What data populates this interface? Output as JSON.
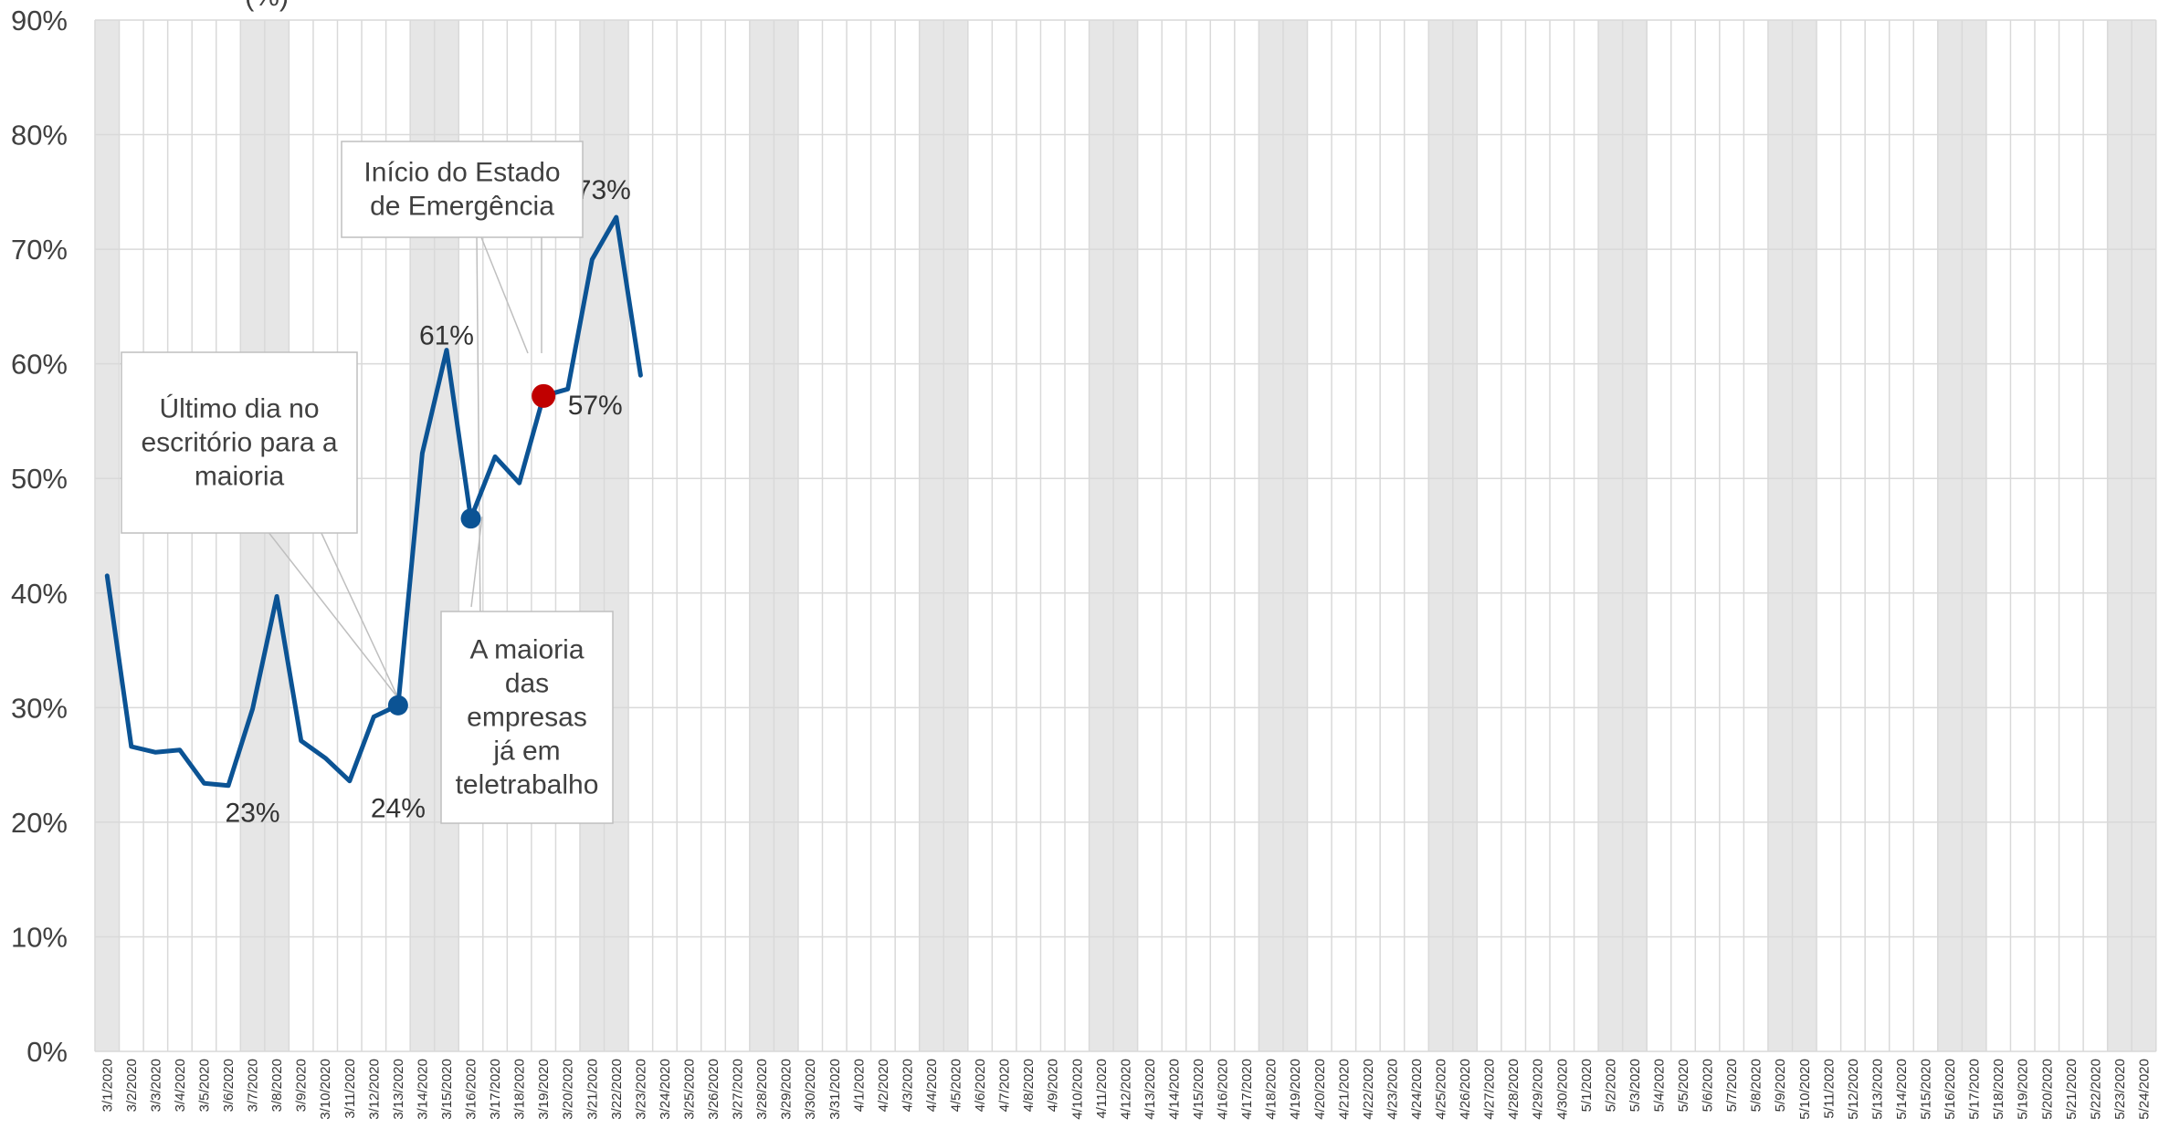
{
  "chart_data": {
    "type": "line",
    "title": "(%)",
    "ylim": [
      0,
      0.9
    ],
    "y_ticks": [
      "0%",
      "10%",
      "20%",
      "30%",
      "40%",
      "50%",
      "60%",
      "70%",
      "80%",
      "90%"
    ],
    "grid": true,
    "categories": [
      "3/1/2020",
      "3/2/2020",
      "3/3/2020",
      "3/4/2020",
      "3/5/2020",
      "3/6/2020",
      "3/7/2020",
      "3/8/2020",
      "3/9/2020",
      "3/10/2020",
      "3/11/2020",
      "3/12/2020",
      "3/13/2020",
      "3/14/2020",
      "3/15/2020",
      "3/16/2020",
      "3/17/2020",
      "3/18/2020",
      "3/19/2020",
      "3/20/2020",
      "3/21/2020",
      "3/22/2020",
      "3/23/2020",
      "3/24/2020",
      "3/25/2020",
      "3/26/2020",
      "3/27/2020",
      "3/28/2020",
      "3/29/2020",
      "3/30/2020",
      "3/31/2020",
      "4/1/2020",
      "4/2/2020",
      "4/3/2020",
      "4/4/2020",
      "4/5/2020",
      "4/6/2020",
      "4/7/2020",
      "4/8/2020",
      "4/9/2020",
      "4/10/2020",
      "4/11/2020",
      "4/12/2020",
      "4/13/2020",
      "4/14/2020",
      "4/15/2020",
      "4/16/2020",
      "4/17/2020",
      "4/18/2020",
      "4/19/2020",
      "4/20/2020",
      "4/21/2020",
      "4/22/2020",
      "4/23/2020",
      "4/24/2020",
      "4/25/2020",
      "4/26/2020",
      "4/27/2020",
      "4/28/2020",
      "4/29/2020",
      "4/30/2020",
      "5/1/2020",
      "5/2/2020",
      "5/3/2020",
      "5/4/2020",
      "5/5/2020",
      "5/6/2020",
      "5/7/2020",
      "5/8/2020",
      "5/9/2020",
      "5/10/2020",
      "5/11/2020",
      "5/12/2020",
      "5/13/2020",
      "5/14/2020",
      "5/15/2020",
      "5/16/2020",
      "5/17/2020",
      "5/18/2020",
      "5/19/2020",
      "5/20/2020",
      "5/21/2020",
      "5/22/2020",
      "5/23/2020",
      "5/24/2020"
    ],
    "weekend_bands": [
      [
        "3/1/2020",
        "3/1/2020"
      ],
      [
        "3/7/2020",
        "3/8/2020"
      ],
      [
        "3/14/2020",
        "3/15/2020"
      ],
      [
        "3/21/2020",
        "3/22/2020"
      ],
      [
        "3/28/2020",
        "3/29/2020"
      ],
      [
        "4/4/2020",
        "4/5/2020"
      ],
      [
        "4/11/2020",
        "4/12/2020"
      ],
      [
        "4/18/2020",
        "4/19/2020"
      ],
      [
        "4/25/2020",
        "4/26/2020"
      ],
      [
        "5/2/2020",
        "5/3/2020"
      ],
      [
        "5/9/2020",
        "5/10/2020"
      ],
      [
        "5/16/2020",
        "5/17/2020"
      ],
      [
        "5/23/2020",
        "5/24/2020"
      ]
    ],
    "series": [
      {
        "color": "#0B5394",
        "x": [
          "3/1/2020",
          "3/2/2020",
          "3/3/2020",
          "3/4/2020",
          "3/5/2020",
          "3/6/2020",
          "3/7/2020",
          "3/8/2020",
          "3/9/2020",
          "3/10/2020",
          "3/11/2020",
          "3/12/2020",
          "3/13/2020",
          "3/14/2020",
          "3/15/2020",
          "3/16/2020",
          "3/17/2020",
          "3/18/2020",
          "3/19/2020",
          "3/20/2020",
          "3/21/2020",
          "3/22/2020",
          "3/23/2020"
        ],
        "values": [
          0.415,
          0.266,
          0.261,
          0.263,
          0.234,
          0.232,
          0.299,
          0.397,
          0.271,
          0.256,
          0.236,
          0.292,
          0.302,
          0.522,
          0.612,
          0.465,
          0.519,
          0.496,
          0.572,
          0.578,
          0.691,
          0.728,
          0.59
        ]
      }
    ],
    "markers": [
      {
        "x": "3/13/2020",
        "value": 0.302,
        "color": "#0B5394"
      },
      {
        "x": "3/16/2020",
        "value": 0.465,
        "color": "#0B5394"
      },
      {
        "x": "3/19/2020",
        "value": 0.572,
        "color": "#C00000"
      }
    ],
    "data_labels": [
      {
        "x": "3/7/2020",
        "value": 0.232,
        "text": "23%"
      },
      {
        "x": "3/13/2020",
        "value": 0.236,
        "text": "24%"
      },
      {
        "x": "3/15/2020",
        "value": 0.612,
        "text": "61%"
      },
      {
        "x": "3/20/2020",
        "value": 0.572,
        "text": "57%"
      },
      {
        "x": "3/22/2020",
        "value": 0.728,
        "text": "73%"
      }
    ],
    "callouts": [
      {
        "lines": [
          "Último dia no",
          "escritório para a",
          "maioria"
        ],
        "points_to": "3/13/2020"
      },
      {
        "lines": [
          "A maioria",
          "das",
          "empresas",
          "já em",
          "teletrabalho"
        ],
        "points_to": "3/16/2020"
      },
      {
        "lines": [
          "Início do Estado",
          "de Emergência"
        ],
        "points_to": "3/19/2020"
      }
    ]
  }
}
